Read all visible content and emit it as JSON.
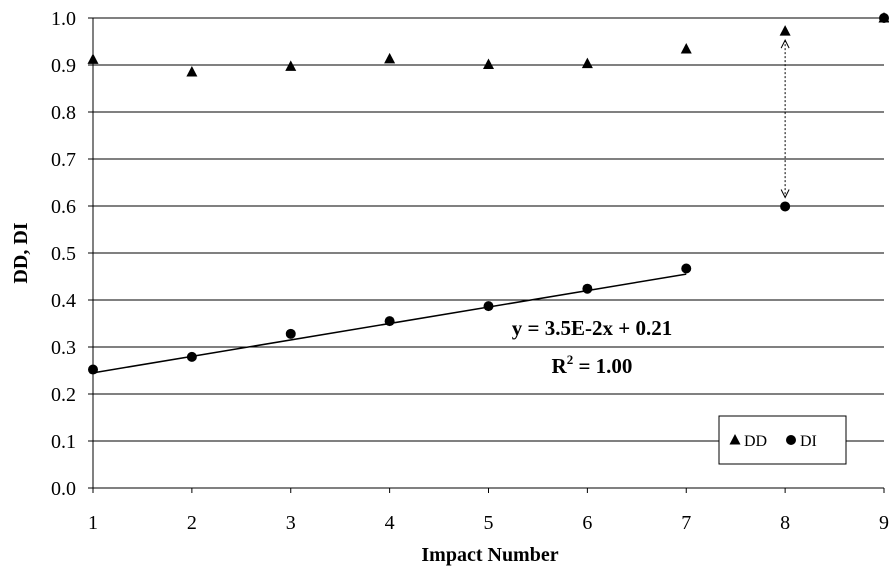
{
  "chart_data": {
    "type": "scatter",
    "xlabel": "Impact Number",
    "ylabel": "DD, DI",
    "xlim": [
      1,
      9
    ],
    "ylim": [
      0,
      1.0
    ],
    "x_ticks": [
      "1",
      "2",
      "3",
      "4",
      "5",
      "6",
      "7",
      "8",
      "9"
    ],
    "y_ticks": [
      "0.0",
      "0.1",
      "0.2",
      "0.3",
      "0.4",
      "0.5",
      "0.6",
      "0.7",
      "0.8",
      "0.9",
      "1.0"
    ],
    "grid": "horizontal",
    "legend_position": "bottom-right",
    "series": [
      {
        "name": "DD",
        "marker": "triangle",
        "color": "#000000",
        "x": [
          1,
          2,
          3,
          4,
          5,
          6,
          7,
          8,
          9
        ],
        "y": [
          0.912,
          0.885,
          0.897,
          0.913,
          0.901,
          0.903,
          0.934,
          0.972,
          1.0
        ]
      },
      {
        "name": "DI",
        "marker": "circle",
        "color": "#000000",
        "x": [
          1,
          2,
          3,
          4,
          5,
          6,
          7,
          8,
          9
        ],
        "y": [
          0.252,
          0.279,
          0.328,
          0.355,
          0.387,
          0.424,
          0.467,
          0.599,
          1.0
        ]
      }
    ],
    "trendline": {
      "series": "DI",
      "x_range": [
        1,
        7
      ],
      "slope": 0.035,
      "intercept": 0.21,
      "equation": "y = 3.5E-2x + 0.21",
      "r2_prefix": "R",
      "r2_sup": "2",
      "r2_suffix": " = 1.00"
    },
    "annotation_arrow": {
      "x": 8,
      "y_from": 0.972,
      "y_to": 0.599,
      "style": "dotted double-headed"
    }
  }
}
